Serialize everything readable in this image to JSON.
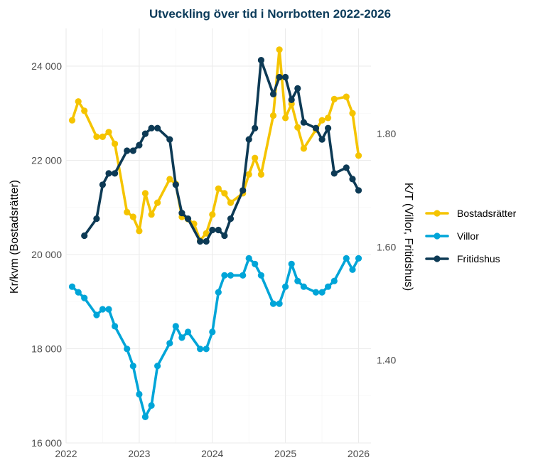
{
  "chart_data": {
    "type": "line",
    "title": "Utveckling över tid i Norrbotten 2022-2026",
    "ylabel_left": "Kr/kvm (Bostadsrätter)",
    "ylabel_right": "K/T (Villor, Fritidshus)",
    "x_ticks": [
      "2022",
      "2023",
      "2024",
      "2025",
      "2026"
    ],
    "y_left_ticks": [
      "16 000",
      "18 000",
      "20 000",
      "22 000",
      "24 000"
    ],
    "y_right_ticks": [
      "1.40",
      "1.60",
      "1.80"
    ],
    "x_range": [
      2022.0,
      2026.17
    ],
    "y_left_range": [
      16000,
      24800
    ],
    "y_right_range": [
      1.254,
      1.986
    ],
    "legend_position": "right",
    "grid": true,
    "series": [
      {
        "name": "Bostadsrätter",
        "axis": "left",
        "color": "#f5c400",
        "x": [
          2022.083,
          2022.167,
          2022.25,
          2022.417,
          2022.5,
          2022.583,
          2022.667,
          2022.833,
          2022.917,
          2023.0,
          2023.083,
          2023.167,
          2023.25,
          2023.417,
          2023.5,
          2023.583,
          2023.667,
          2023.75,
          2023.833,
          2023.917,
          2024.0,
          2024.083,
          2024.167,
          2024.25,
          2024.417,
          2024.5,
          2024.583,
          2024.667,
          2024.833,
          2024.917,
          2025.0,
          2025.083,
          2025.167,
          2025.25,
          2025.417,
          2025.5,
          2025.583,
          2025.667,
          2025.833,
          2025.917,
          2026.0
        ],
        "values": [
          22850,
          23250,
          23050,
          22500,
          22500,
          22600,
          22350,
          20900,
          20800,
          20500,
          21300,
          20850,
          21100,
          21600,
          21500,
          20800,
          20750,
          20650,
          20300,
          20450,
          20850,
          21400,
          21300,
          21100,
          21300,
          21700,
          22050,
          21700,
          22950,
          24350,
          22900,
          23200,
          22700,
          22250,
          22650,
          22850,
          22900,
          23300,
          23350,
          23000,
          22100
        ]
      },
      {
        "name": "Villor",
        "axis": "right",
        "color": "#00a5d8",
        "x": [
          2022.083,
          2022.167,
          2022.25,
          2022.417,
          2022.5,
          2022.583,
          2022.667,
          2022.833,
          2022.917,
          2023.0,
          2023.083,
          2023.167,
          2023.25,
          2023.417,
          2023.5,
          2023.583,
          2023.667,
          2023.833,
          2023.917,
          2024.0,
          2024.083,
          2024.167,
          2024.25,
          2024.417,
          2024.5,
          2024.583,
          2024.667,
          2024.833,
          2024.917,
          2025.0,
          2025.083,
          2025.167,
          2025.25,
          2025.417,
          2025.5,
          2025.583,
          2025.667,
          2025.833,
          2025.917,
          2026.0
        ],
        "values": [
          1.53,
          1.52,
          1.51,
          1.48,
          1.49,
          1.49,
          1.46,
          1.42,
          1.39,
          1.34,
          1.3,
          1.32,
          1.39,
          1.43,
          1.46,
          1.44,
          1.45,
          1.42,
          1.42,
          1.45,
          1.52,
          1.55,
          1.55,
          1.55,
          1.58,
          1.57,
          1.55,
          1.5,
          1.5,
          1.53,
          1.57,
          1.54,
          1.53,
          1.52,
          1.52,
          1.53,
          1.54,
          1.58,
          1.56,
          1.58
        ]
      },
      {
        "name": "Fritidshus",
        "axis": "right",
        "color": "#0d3a55",
        "x": [
          2022.25,
          2022.417,
          2022.5,
          2022.583,
          2022.667,
          2022.833,
          2022.917,
          2023.0,
          2023.083,
          2023.167,
          2023.25,
          2023.417,
          2023.5,
          2023.583,
          2023.667,
          2023.833,
          2023.917,
          2024.0,
          2024.083,
          2024.167,
          2024.25,
          2024.417,
          2024.5,
          2024.583,
          2024.667,
          2024.833,
          2024.917,
          2025.0,
          2025.083,
          2025.167,
          2025.25,
          2025.417,
          2025.5,
          2025.583,
          2025.667,
          2025.833,
          2025.917,
          2026.0
        ],
        "values": [
          1.62,
          1.65,
          1.71,
          1.73,
          1.73,
          1.77,
          1.77,
          1.78,
          1.8,
          1.81,
          1.81,
          1.79,
          1.71,
          1.66,
          1.65,
          1.61,
          1.61,
          1.63,
          1.63,
          1.62,
          1.65,
          1.7,
          1.79,
          1.81,
          1.93,
          1.87,
          1.9,
          1.9,
          1.86,
          1.88,
          1.82,
          1.81,
          1.79,
          1.81,
          1.73,
          1.74,
          1.72,
          1.7
        ]
      }
    ]
  }
}
